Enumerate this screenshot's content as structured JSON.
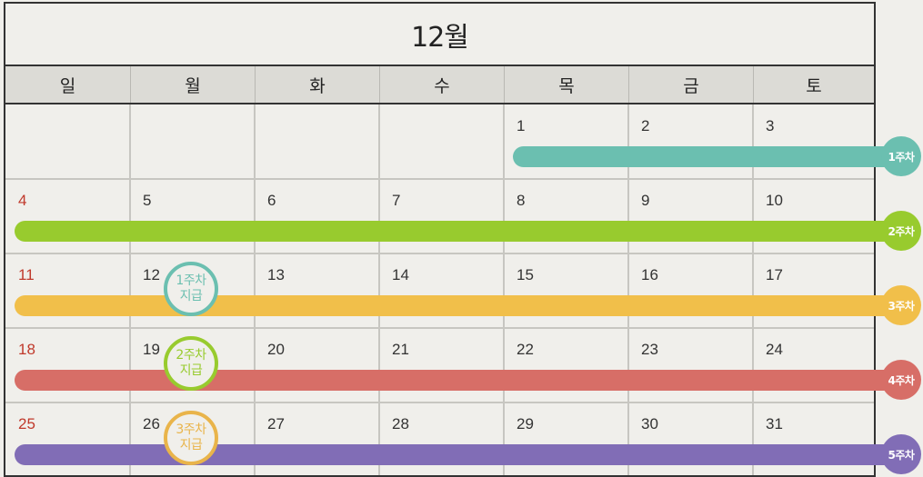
{
  "title": "12월",
  "weekdays": [
    "일",
    "월",
    "화",
    "수",
    "목",
    "금",
    "토"
  ],
  "weeks": [
    [
      "",
      "",
      "",
      "",
      "1",
      "2",
      "3"
    ],
    [
      "4",
      "5",
      "6",
      "7",
      "8",
      "9",
      "10"
    ],
    [
      "11",
      "12",
      "13",
      "14",
      "15",
      "16",
      "17"
    ],
    [
      "18",
      "19",
      "20",
      "21",
      "22",
      "23",
      "24"
    ],
    [
      "25",
      "26",
      "27",
      "28",
      "29",
      "30",
      "31"
    ]
  ],
  "colors": {
    "week1": "#6bbfb0",
    "week2": "#98cb2e",
    "week3": "#f1bf4a",
    "week4": "#d76e67",
    "week5": "#816db6",
    "sunday": "#c0392b"
  },
  "weekBars": [
    {
      "label": "1주차",
      "color": "#6bbfb0"
    },
    {
      "label": "2주차",
      "color": "#98cb2e"
    },
    {
      "label": "3주차",
      "color": "#f1bf4a"
    },
    {
      "label": "4주차",
      "color": "#d76e67"
    },
    {
      "label": "5주차",
      "color": "#816db6"
    }
  ],
  "payments": [
    {
      "week": "1주차",
      "label": "지급",
      "color": "#6bbfb0"
    },
    {
      "week": "2주차",
      "label": "지급",
      "color": "#98cb2e"
    },
    {
      "week": "3주차",
      "label": "지급",
      "color": "#e9b44a"
    }
  ]
}
